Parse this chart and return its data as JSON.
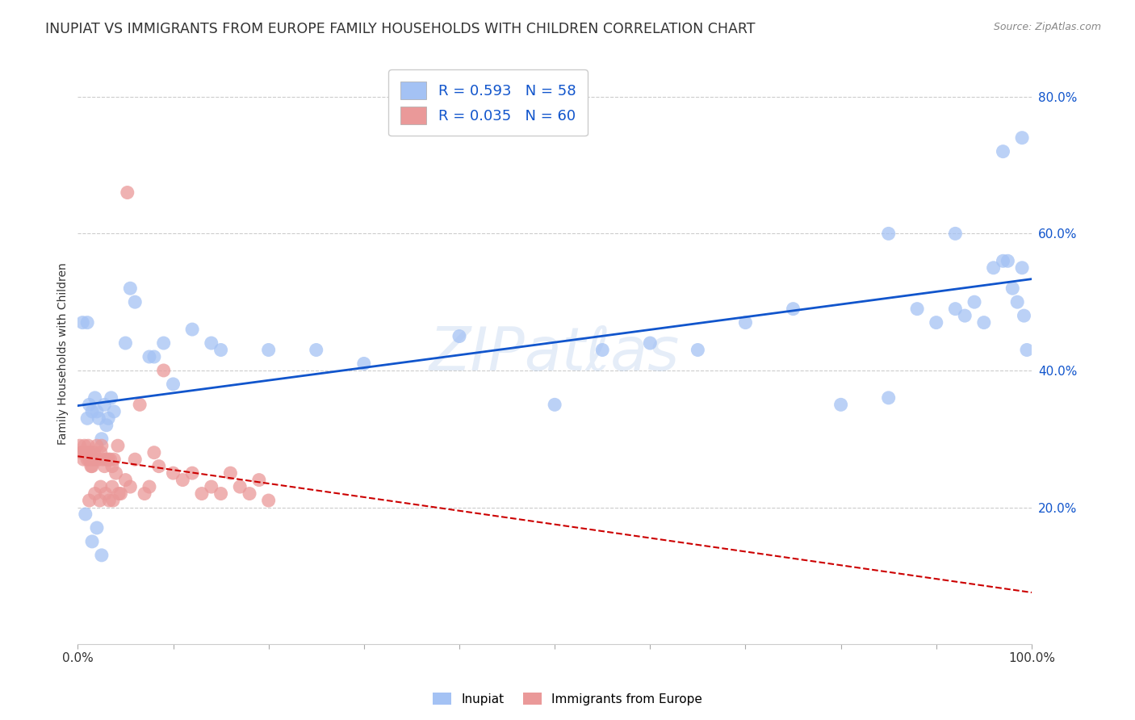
{
  "title": "INUPIAT VS IMMIGRANTS FROM EUROPE FAMILY HOUSEHOLDS WITH CHILDREN CORRELATION CHART",
  "source": "Source: ZipAtlas.com",
  "ylabel": "Family Households with Children",
  "watermark": "ZIPatℓas",
  "inupiat_R": 0.593,
  "inupiat_N": 58,
  "europe_R": 0.035,
  "europe_N": 60,
  "xlim": [
    0,
    100
  ],
  "ylim": [
    0,
    85
  ],
  "yticks": [
    20,
    40,
    60,
    80
  ],
  "ytick_labels": [
    "20.0%",
    "40.0%",
    "60.0%",
    "80.0%"
  ],
  "inupiat_color": "#a4c2f4",
  "europe_color": "#ea9999",
  "inupiat_line_color": "#1155cc",
  "europe_line_color": "#cc0000",
  "background_color": "#ffffff",
  "grid_color": "#cccccc",
  "inupiat_scatter": [
    [
      0.5,
      47
    ],
    [
      1.0,
      33
    ],
    [
      1.2,
      35
    ],
    [
      1.5,
      34
    ],
    [
      1.8,
      36
    ],
    [
      2.0,
      34
    ],
    [
      2.2,
      33
    ],
    [
      2.5,
      30
    ],
    [
      2.8,
      35
    ],
    [
      3.0,
      32
    ],
    [
      3.2,
      33
    ],
    [
      3.5,
      36
    ],
    [
      3.8,
      34
    ],
    [
      0.8,
      19
    ],
    [
      1.5,
      15
    ],
    [
      2.0,
      17
    ],
    [
      2.5,
      13
    ],
    [
      5.0,
      44
    ],
    [
      5.5,
      52
    ],
    [
      6.0,
      50
    ],
    [
      7.5,
      42
    ],
    [
      8.0,
      42
    ],
    [
      9.0,
      44
    ],
    [
      10.0,
      38
    ],
    [
      12.0,
      46
    ],
    [
      14.0,
      44
    ],
    [
      15.0,
      43
    ],
    [
      20.0,
      43
    ],
    [
      25.0,
      43
    ],
    [
      30.0,
      41
    ],
    [
      40.0,
      45
    ],
    [
      50.0,
      35
    ],
    [
      55.0,
      43
    ],
    [
      60.0,
      44
    ],
    [
      65.0,
      43
    ],
    [
      70.0,
      47
    ],
    [
      75.0,
      49
    ],
    [
      80.0,
      35
    ],
    [
      85.0,
      36
    ],
    [
      88.0,
      49
    ],
    [
      90.0,
      47
    ],
    [
      92.0,
      49
    ],
    [
      93.0,
      48
    ],
    [
      94.0,
      50
    ],
    [
      95.0,
      47
    ],
    [
      96.0,
      55
    ],
    [
      97.0,
      56
    ],
    [
      97.5,
      56
    ],
    [
      98.0,
      52
    ],
    [
      98.5,
      50
    ],
    [
      99.0,
      55
    ],
    [
      99.2,
      48
    ],
    [
      99.5,
      43
    ],
    [
      85.0,
      60
    ],
    [
      92.0,
      60
    ],
    [
      97.0,
      72
    ],
    [
      99.0,
      74
    ],
    [
      1.0,
      47
    ]
  ],
  "europe_scatter": [
    [
      0.2,
      29
    ],
    [
      0.4,
      28
    ],
    [
      0.5,
      28
    ],
    [
      0.6,
      27
    ],
    [
      0.7,
      29
    ],
    [
      0.8,
      28
    ],
    [
      0.9,
      28
    ],
    [
      1.0,
      27
    ],
    [
      1.1,
      29
    ],
    [
      1.2,
      27
    ],
    [
      1.3,
      28
    ],
    [
      1.4,
      26
    ],
    [
      1.5,
      26
    ],
    [
      1.6,
      27
    ],
    [
      1.7,
      28
    ],
    [
      1.8,
      27
    ],
    [
      2.0,
      29
    ],
    [
      2.2,
      27
    ],
    [
      2.4,
      28
    ],
    [
      2.5,
      29
    ],
    [
      2.6,
      27
    ],
    [
      2.8,
      26
    ],
    [
      3.0,
      27
    ],
    [
      3.2,
      27
    ],
    [
      3.4,
      27
    ],
    [
      3.6,
      26
    ],
    [
      3.8,
      27
    ],
    [
      4.0,
      25
    ],
    [
      4.2,
      29
    ],
    [
      4.5,
      22
    ],
    [
      5.0,
      24
    ],
    [
      5.5,
      23
    ],
    [
      6.0,
      27
    ],
    [
      6.5,
      35
    ],
    [
      7.0,
      22
    ],
    [
      7.5,
      23
    ],
    [
      8.0,
      28
    ],
    [
      8.5,
      26
    ],
    [
      9.0,
      40
    ],
    [
      10.0,
      25
    ],
    [
      11.0,
      24
    ],
    [
      12.0,
      25
    ],
    [
      13.0,
      22
    ],
    [
      14.0,
      23
    ],
    [
      15.0,
      22
    ],
    [
      16.0,
      25
    ],
    [
      17.0,
      23
    ],
    [
      18.0,
      22
    ],
    [
      19.0,
      24
    ],
    [
      20.0,
      21
    ],
    [
      1.2,
      21
    ],
    [
      1.8,
      22
    ],
    [
      2.3,
      21
    ],
    [
      2.9,
      22
    ],
    [
      3.3,
      21
    ],
    [
      3.7,
      21
    ],
    [
      4.3,
      22
    ],
    [
      5.2,
      66
    ],
    [
      2.4,
      23
    ],
    [
      3.6,
      23
    ]
  ]
}
